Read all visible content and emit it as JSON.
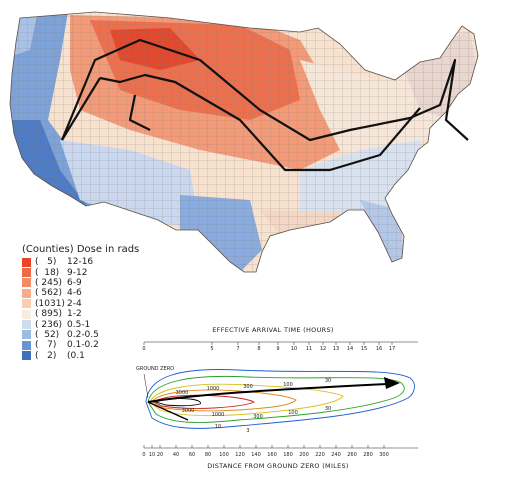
{
  "legend": {
    "title": "(Counties) Dose in rads",
    "items": [
      {
        "count": "(   5)",
        "range": "12-16",
        "color": "#e8442a"
      },
      {
        "count": "(  18)",
        "range": "9-12",
        "color": "#ee6a47"
      },
      {
        "count": "( 245)",
        "range": "6-9",
        "color": "#f28c66"
      },
      {
        "count": "( 562)",
        "range": "4-6",
        "color": "#f5ad8c"
      },
      {
        "count": "(1031)",
        "range": "2-4",
        "color": "#f9cfb4"
      },
      {
        "count": "( 895)",
        "range": "1-2",
        "color": "#f6ecdf"
      },
      {
        "count": "( 236)",
        "range": "0.5-1",
        "color": "#cfdcef"
      },
      {
        "count": "(  52)",
        "range": "0.2-0.5",
        "color": "#9ebbe2"
      },
      {
        "count": "(   7)",
        "range": "0.1-0.2",
        "color": "#6a93d1"
      },
      {
        "count": "(   2)",
        "range": "(0.1",
        "color": "#3f6fbd"
      }
    ]
  },
  "fallout": {
    "top_axis_title": "EFFECTIVE ARRIVAL TIME (HOURS)",
    "top_ticks": [
      "0",
      "5",
      "7",
      "8",
      "9",
      "10",
      "11",
      "12",
      "13",
      "14",
      "15",
      "16",
      "17"
    ],
    "bottom_axis_title": "DISTANCE FROM GROUND ZERO (MILES)",
    "bottom_ticks": [
      "0",
      "10",
      "20",
      "40",
      "60",
      "80",
      "100",
      "120",
      "140",
      "160",
      "180",
      "200",
      "220",
      "240",
      "260",
      "280",
      "300"
    ],
    "ground_zero_label": "GROUND ZERO",
    "contour_labels": [
      "3000",
      "1000",
      "300",
      "100",
      "30",
      "3000",
      "1000",
      "300",
      "100",
      "30",
      "10",
      "3"
    ],
    "contour_colors": [
      "#000000",
      "#cc2222",
      "#e08a1c",
      "#d6c21a",
      "#2aa12a",
      "#1f5fd1"
    ]
  }
}
